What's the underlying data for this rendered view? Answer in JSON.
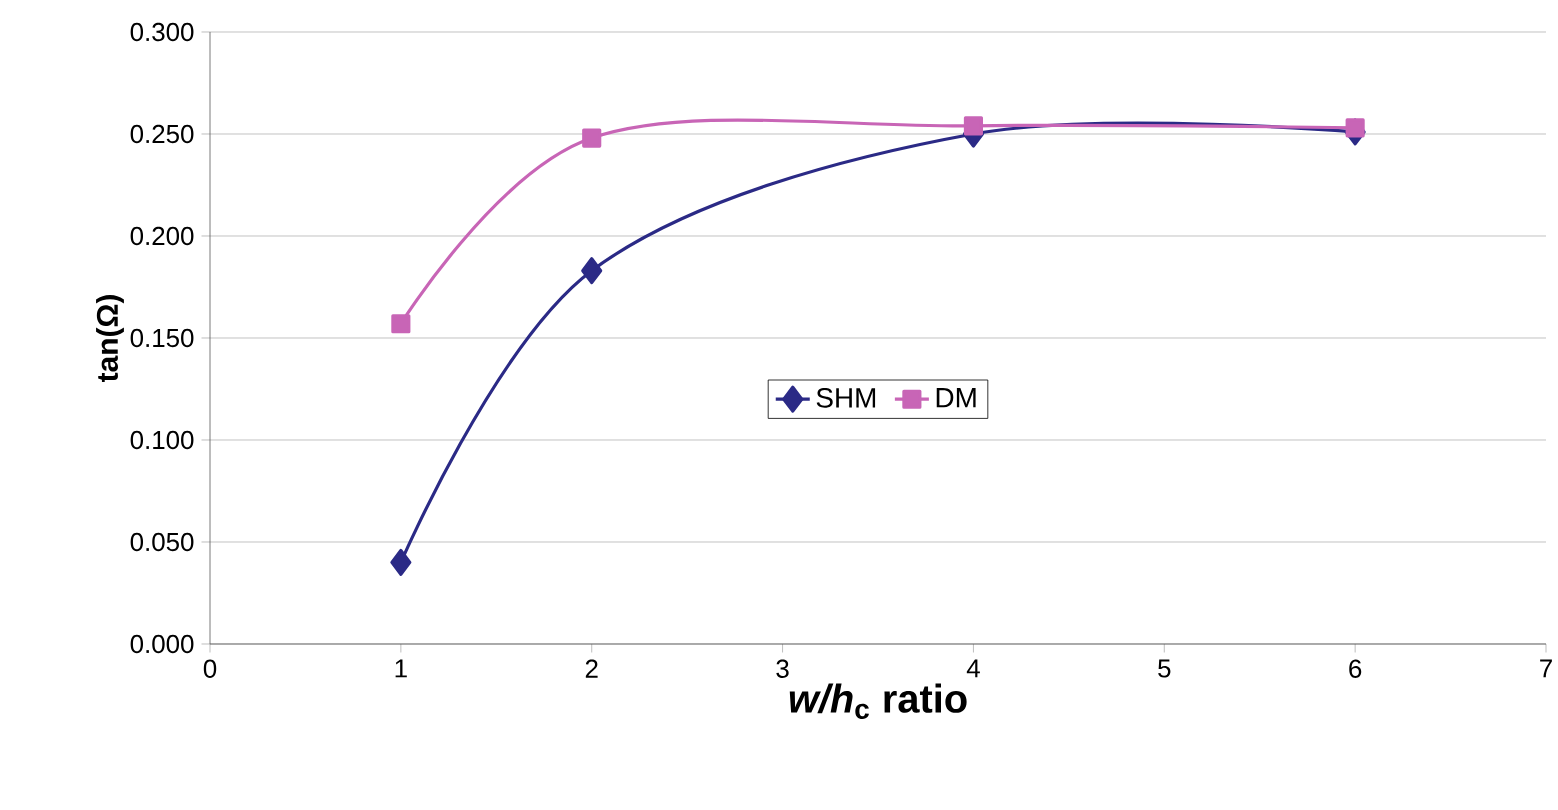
{
  "chart_data": {
    "type": "line",
    "xlabel": "*w/h*$_{c}$ ratio",
    "ylabel": "tan(Ω)",
    "series": [
      {
        "name": "SHM",
        "color": "#2b2a86",
        "marker": "diamond",
        "x": [
          1,
          2,
          4,
          6
        ],
        "values": [
          0.04,
          0.183,
          0.25,
          0.251
        ]
      },
      {
        "name": "DM",
        "color": "#c865b6",
        "marker": "square",
        "x": [
          1,
          2,
          4,
          6
        ],
        "values": [
          0.157,
          0.248,
          0.254,
          0.253
        ]
      }
    ],
    "xlim": [
      0,
      7
    ],
    "xticks": [
      0,
      1,
      2,
      3,
      4,
      5,
      6,
      7
    ],
    "ylim": [
      0,
      0.3
    ],
    "yticks": [
      {
        "value": 0,
        "label": "0.000"
      },
      {
        "value": 0.05,
        "label": "0.050"
      },
      {
        "value": 0.1,
        "label": "0.100"
      },
      {
        "value": 0.15,
        "label": "0.150"
      },
      {
        "value": 0.2,
        "label": "0.200"
      },
      {
        "value": 0.25,
        "label": "0.250"
      },
      {
        "value": 0.3,
        "label": "0.300"
      }
    ],
    "grid": "y",
    "legend": "center",
    "line_style": "solid"
  }
}
